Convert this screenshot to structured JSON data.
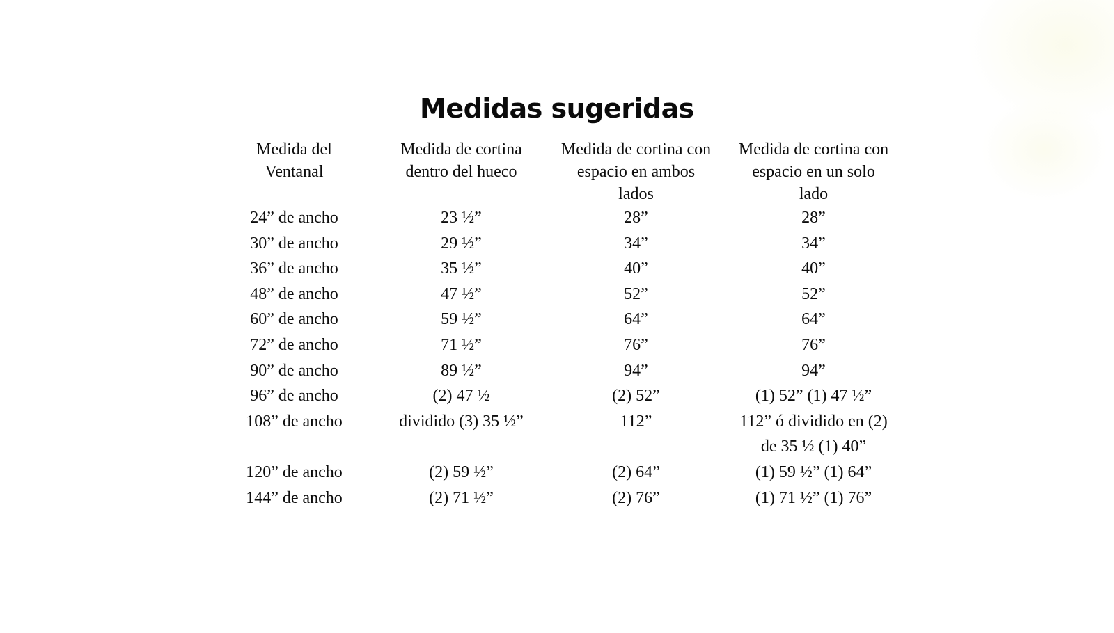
{
  "title": "Medidas sugeridas",
  "decor": {
    "corner_blob_color": "#FBFBEC"
  },
  "table": {
    "columns": [
      "Medida del\nVentanal",
      "Medida de cortina\ndentro del hueco",
      "Medida de cortina con\nespacio en ambos\nlados",
      "Medida de cortina con\nespacio en un solo\nlado"
    ],
    "rows": [
      [
        "24” de ancho",
        "23 ½”",
        "28”",
        "28”"
      ],
      [
        "30” de ancho",
        "29 ½”",
        "34”",
        "34”"
      ],
      [
        "36” de ancho",
        "35 ½”",
        "40”",
        "40”"
      ],
      [
        "48” de ancho",
        "47 ½”",
        "52”",
        "52”"
      ],
      [
        "60” de ancho",
        "59 ½”",
        "64”",
        "64”"
      ],
      [
        "72” de ancho",
        "71 ½”",
        "76”",
        "76”"
      ],
      [
        "90” de ancho",
        "89 ½”",
        "94”",
        "94”"
      ],
      [
        "96” de ancho",
        "(2) 47 ½",
        "(2) 52”",
        "(1) 52” (1) 47 ½”"
      ],
      [
        "108” de ancho",
        "dividido (3) 35 ½”",
        "112”",
        "112” ó dividido en (2)\nde 35 ½ (1) 40”"
      ],
      [
        "120” de ancho",
        "(2) 59 ½”",
        "(2) 64”",
        "(1) 59 ½” (1) 64”"
      ],
      [
        "144” de ancho",
        "(2) 71 ½”",
        "(2) 76”",
        "(1) 71 ½” (1) 76”"
      ]
    ]
  }
}
